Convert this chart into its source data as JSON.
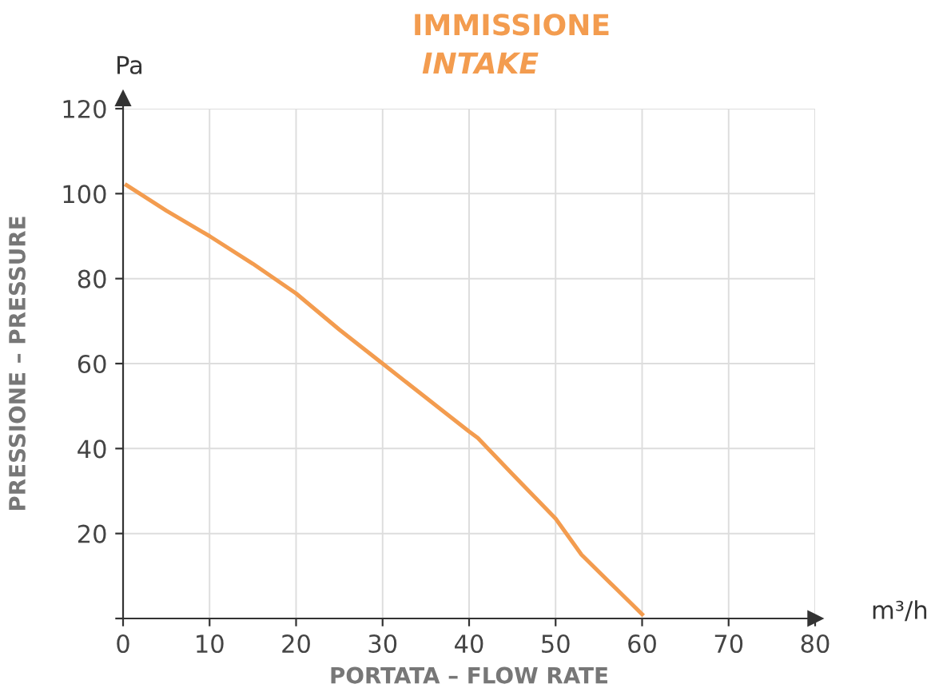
{
  "chart_data": {
    "type": "line",
    "title": "IMMISSIONE",
    "subtitle": "INTAKE",
    "xlabel": "PORTATA – FLOW RATE",
    "ylabel": "PRESSIONE – PRESSURE",
    "annotations": [
      "Pa",
      "m³/h"
    ],
    "x": [
      0.4,
      5,
      10,
      15,
      20,
      25,
      30,
      35,
      40,
      41,
      45,
      50,
      53,
      57,
      60
    ],
    "series": [
      {
        "color": "#f39c4f",
        "values": [
          102,
          96,
          90,
          83.5,
          76.5,
          68,
          60,
          52,
          44,
          42.5,
          34,
          23.5,
          15,
          7,
          1
        ]
      }
    ],
    "xlim": [
      0,
      80
    ],
    "xticks": [
      0,
      10,
      20,
      30,
      40,
      50,
      60,
      70,
      80
    ],
    "ylim": [
      0,
      120
    ],
    "yticks": [
      {
        "value": 0,
        "label": null
      },
      20,
      40,
      60,
      80,
      100,
      120
    ],
    "grid": true,
    "legend": false,
    "marker": "none",
    "line_style": "solid"
  }
}
